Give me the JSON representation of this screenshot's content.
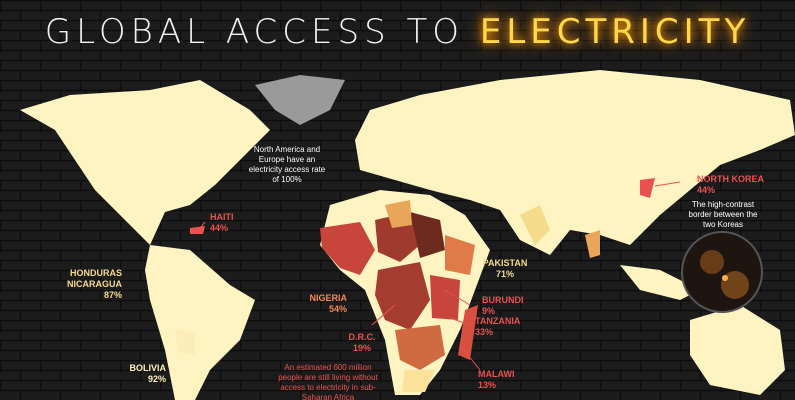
{
  "title": {
    "prefix": "GLOBAL ACCESS TO",
    "highlight": "ELECTRICITY"
  },
  "notes": [
    {
      "text": "North America and Europe have an electricity access rate of 100%",
      "color": "#ffffff"
    },
    {
      "text": "The high-contrast border between the two Koreas",
      "color": "#ffffff"
    },
    {
      "text": "An estimated 600 million people are still living without access to electricity in sub-Saharan Africa",
      "color": "#e8524f"
    }
  ],
  "countries": [
    {
      "name": [
        "HAITI"
      ],
      "value": "44%",
      "color": "#e8524f"
    },
    {
      "name": [
        "HONDURAS",
        "NICARAGUA"
      ],
      "value": "87%",
      "color": "#f5dc8c"
    },
    {
      "name": [
        "NIGERIA"
      ],
      "value": "54%",
      "color": "#ef8a55"
    },
    {
      "name": [
        "PAKISTAN"
      ],
      "value": "71%",
      "color": "#f5dc8c"
    },
    {
      "name": [
        "BURUNDI"
      ],
      "value": "9%",
      "color": "#e8524f"
    },
    {
      "name": [
        "TANZANIA"
      ],
      "value": "33%",
      "color": "#e8524f"
    },
    {
      "name": [
        "D.R.C."
      ],
      "value": "19%",
      "color": "#e8524f"
    },
    {
      "name": [
        "MALAWI"
      ],
      "value": "13%",
      "color": "#e8524f"
    },
    {
      "name": [
        "BOLIVIA"
      ],
      "value": "92%",
      "color": "#fbeebb"
    },
    {
      "name": [
        "NORTH KOREA"
      ],
      "value": "44%",
      "color": "#e8524f"
    }
  ]
}
